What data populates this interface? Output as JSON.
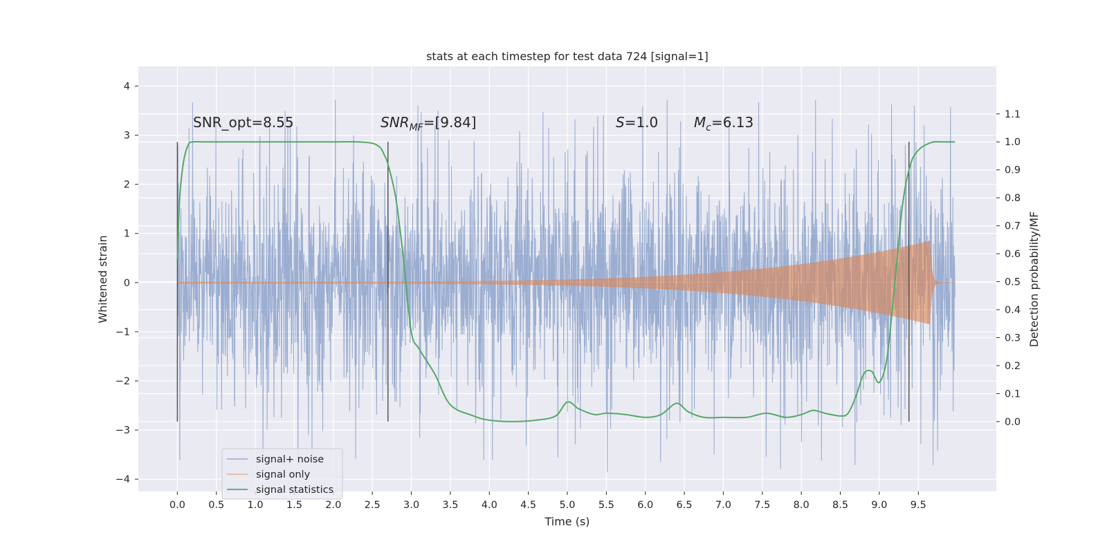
{
  "chart_data": {
    "type": "line",
    "title": "stats at each timestep for test data 724 [signal=1]",
    "xlabel": "Time (s)",
    "ylabel": "Whitened strain",
    "y2label": "Detection probability/MF",
    "xlim": [
      -0.5,
      10.5
    ],
    "ylim": [
      -4.25,
      4.4
    ],
    "y2lim": [
      -0.25,
      1.27
    ],
    "x_ticks": [
      0.0,
      0.5,
      1.0,
      1.5,
      2.0,
      2.5,
      3.0,
      3.5,
      4.0,
      4.5,
      5.0,
      5.5,
      6.0,
      6.5,
      7.0,
      7.5,
      8.0,
      8.5,
      9.0,
      9.5
    ],
    "y_ticks": [
      -4,
      -3,
      -2,
      -1,
      0,
      1,
      2,
      3,
      4
    ],
    "y2_ticks": [
      0.0,
      0.1,
      0.2,
      0.3,
      0.4,
      0.5,
      0.6,
      0.7,
      0.8,
      0.9,
      1.0,
      1.1
    ],
    "grid": true,
    "legend_position": "lower-left",
    "colors": {
      "noise": "#4c72b0",
      "signal": "#dd8452",
      "stats": "#55a868",
      "vline": "#555555",
      "background": "#eaeaf2"
    },
    "series": [
      {
        "name": "signal+ noise",
        "kind": "noise",
        "x_range": [
          0.0,
          9.97
        ],
        "envelope": {
          "typical": 1.3,
          "max": 4.05,
          "min": -3.85
        }
      },
      {
        "name": "signal only",
        "kind": "chirp",
        "x_range": [
          0.0,
          9.97
        ],
        "peak": {
          "x": 9.65,
          "amplitude": 0.85
        }
      },
      {
        "name": "signal statistics",
        "kind": "probability",
        "axis": "right",
        "x": [
          0.0,
          0.03,
          0.08,
          0.14,
          0.2,
          0.3,
          0.5,
          1.0,
          1.5,
          2.0,
          2.3,
          2.5,
          2.6,
          2.65,
          2.7,
          2.8,
          2.9,
          3.0,
          3.1,
          3.3,
          3.5,
          3.8,
          4.0,
          4.3,
          4.6,
          4.85,
          5.0,
          5.15,
          5.35,
          5.5,
          5.75,
          6.0,
          6.2,
          6.4,
          6.55,
          6.75,
          7.0,
          7.3,
          7.55,
          7.8,
          8.0,
          8.15,
          8.3,
          8.5,
          8.6,
          8.7,
          8.8,
          8.9,
          9.0,
          9.1,
          9.2,
          9.3,
          9.4,
          9.5,
          9.6,
          9.7,
          9.8,
          9.97
        ],
        "y": [
          0.58,
          0.8,
          0.93,
          0.99,
          1.0,
          1.0,
          1.0,
          1.0,
          1.0,
          1.0,
          1.0,
          0.995,
          0.98,
          0.955,
          0.92,
          0.8,
          0.58,
          0.32,
          0.26,
          0.17,
          0.06,
          0.02,
          0.005,
          0.0,
          0.005,
          0.02,
          0.07,
          0.045,
          0.025,
          0.03,
          0.025,
          0.015,
          0.025,
          0.065,
          0.035,
          0.015,
          0.015,
          0.015,
          0.03,
          0.015,
          0.025,
          0.04,
          0.03,
          0.02,
          0.03,
          0.09,
          0.17,
          0.18,
          0.14,
          0.23,
          0.5,
          0.78,
          0.92,
          0.97,
          0.99,
          1.0,
          1.0,
          1.0
        ]
      }
    ],
    "vertical_lines": [
      0.0,
      2.7,
      9.38
    ],
    "annotations": {
      "snr_opt": "SNR_opt=8.55",
      "snr_mf_label": "SNR",
      "snr_mf_sub": "MF",
      "snr_mf_value": "=[9.84]",
      "s_label": "S",
      "s_value": "=1.0",
      "mc_label": "M",
      "mc_sub": "c",
      "mc_value": "=6.13"
    }
  }
}
